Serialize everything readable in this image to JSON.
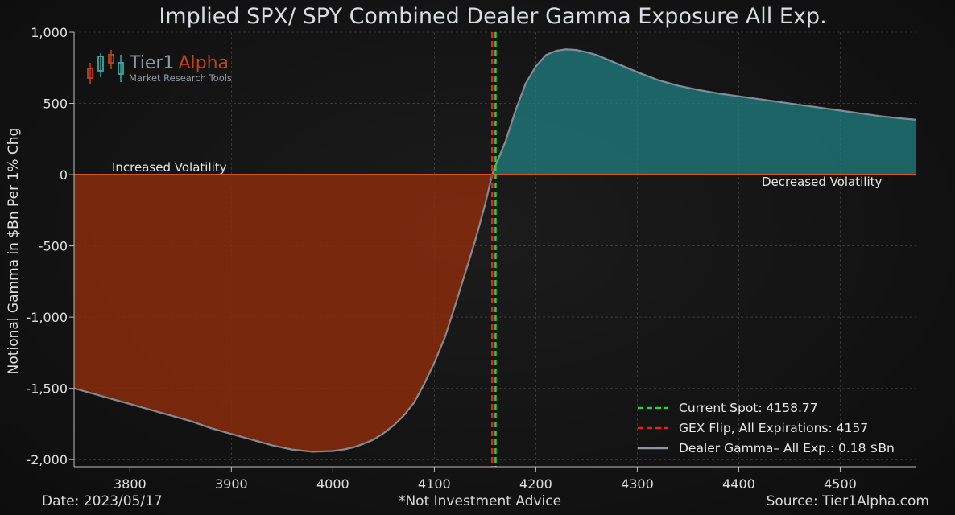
{
  "chart_data": {
    "type": "area",
    "title": "Implied SPX/ SPY Combined Dealer Gamma Exposure All Exp.",
    "xlabel": "",
    "ylabel": "Notional Gamma in $Bn Per 1% Chg",
    "xlim": [
      3745,
      4575
    ],
    "ylim": [
      -2050,
      1000
    ],
    "xticks": [
      3800,
      3900,
      4000,
      4100,
      4200,
      4300,
      4400,
      4500
    ],
    "xtick_labels": [
      "3800",
      "3900",
      "4000",
      "4100",
      "4200",
      "4300",
      "4400",
      "4500"
    ],
    "yticks": [
      1000,
      500,
      0,
      -500,
      -1000,
      -1500,
      -2000
    ],
    "ytick_labels": [
      "1,000",
      "500",
      "0",
      "-500",
      "-1,000",
      "-1,500",
      "-2,000"
    ],
    "grid": true,
    "legend_position": "bottom-right",
    "series": [
      {
        "name": "Dealer Gamma– All Exp.: 0.18 $Bn",
        "color": "#8a96a3",
        "x": [
          3745,
          3760,
          3780,
          3800,
          3820,
          3840,
          3860,
          3880,
          3900,
          3920,
          3940,
          3960,
          3980,
          4000,
          4010,
          4020,
          4030,
          4040,
          4050,
          4060,
          4070,
          4080,
          4090,
          4100,
          4110,
          4120,
          4130,
          4140,
          4150,
          4157,
          4160,
          4170,
          4180,
          4190,
          4200,
          4210,
          4220,
          4230,
          4240,
          4250,
          4260,
          4280,
          4300,
          4320,
          4340,
          4360,
          4380,
          4400,
          4420,
          4440,
          4460,
          4480,
          4500,
          4520,
          4540,
          4560,
          4575
        ],
        "values": [
          -1500,
          -1530,
          -1570,
          -1610,
          -1650,
          -1690,
          -1730,
          -1780,
          -1820,
          -1860,
          -1900,
          -1930,
          -1945,
          -1940,
          -1930,
          -1915,
          -1890,
          -1860,
          -1815,
          -1760,
          -1690,
          -1600,
          -1470,
          -1320,
          -1150,
          -930,
          -700,
          -470,
          -210,
          0,
          60,
          230,
          450,
          640,
          760,
          840,
          870,
          880,
          875,
          860,
          840,
          780,
          720,
          665,
          625,
          595,
          570,
          550,
          530,
          510,
          490,
          470,
          450,
          430,
          410,
          395,
          385
        ]
      }
    ],
    "markers": [
      {
        "name": "Current Spot: 4158.77",
        "x": 4158.77,
        "color": "#2ecc40",
        "style": "dashed"
      },
      {
        "name": "GEX Flip, All Expirations: 4157",
        "x": 4157,
        "color": "#e8201a",
        "style": "dashed"
      }
    ],
    "zero_line_color": "#d8541b",
    "negative_fill_color": "#8a2c0c",
    "positive_fill_color": "#1f7f80",
    "annotations": {
      "increased_volatility": "Increased Volatility",
      "decreased_volatility": "Decreased Volatility"
    }
  },
  "logo": {
    "name_part1": "Tier1",
    "name_part2": "Alpha",
    "tagline": "Market  Research Tools"
  },
  "footer": {
    "date": "Date: 2023/05/17",
    "disclaimer": "*Not Investment Advice",
    "source": "Source: Tier1Alpha.com"
  }
}
